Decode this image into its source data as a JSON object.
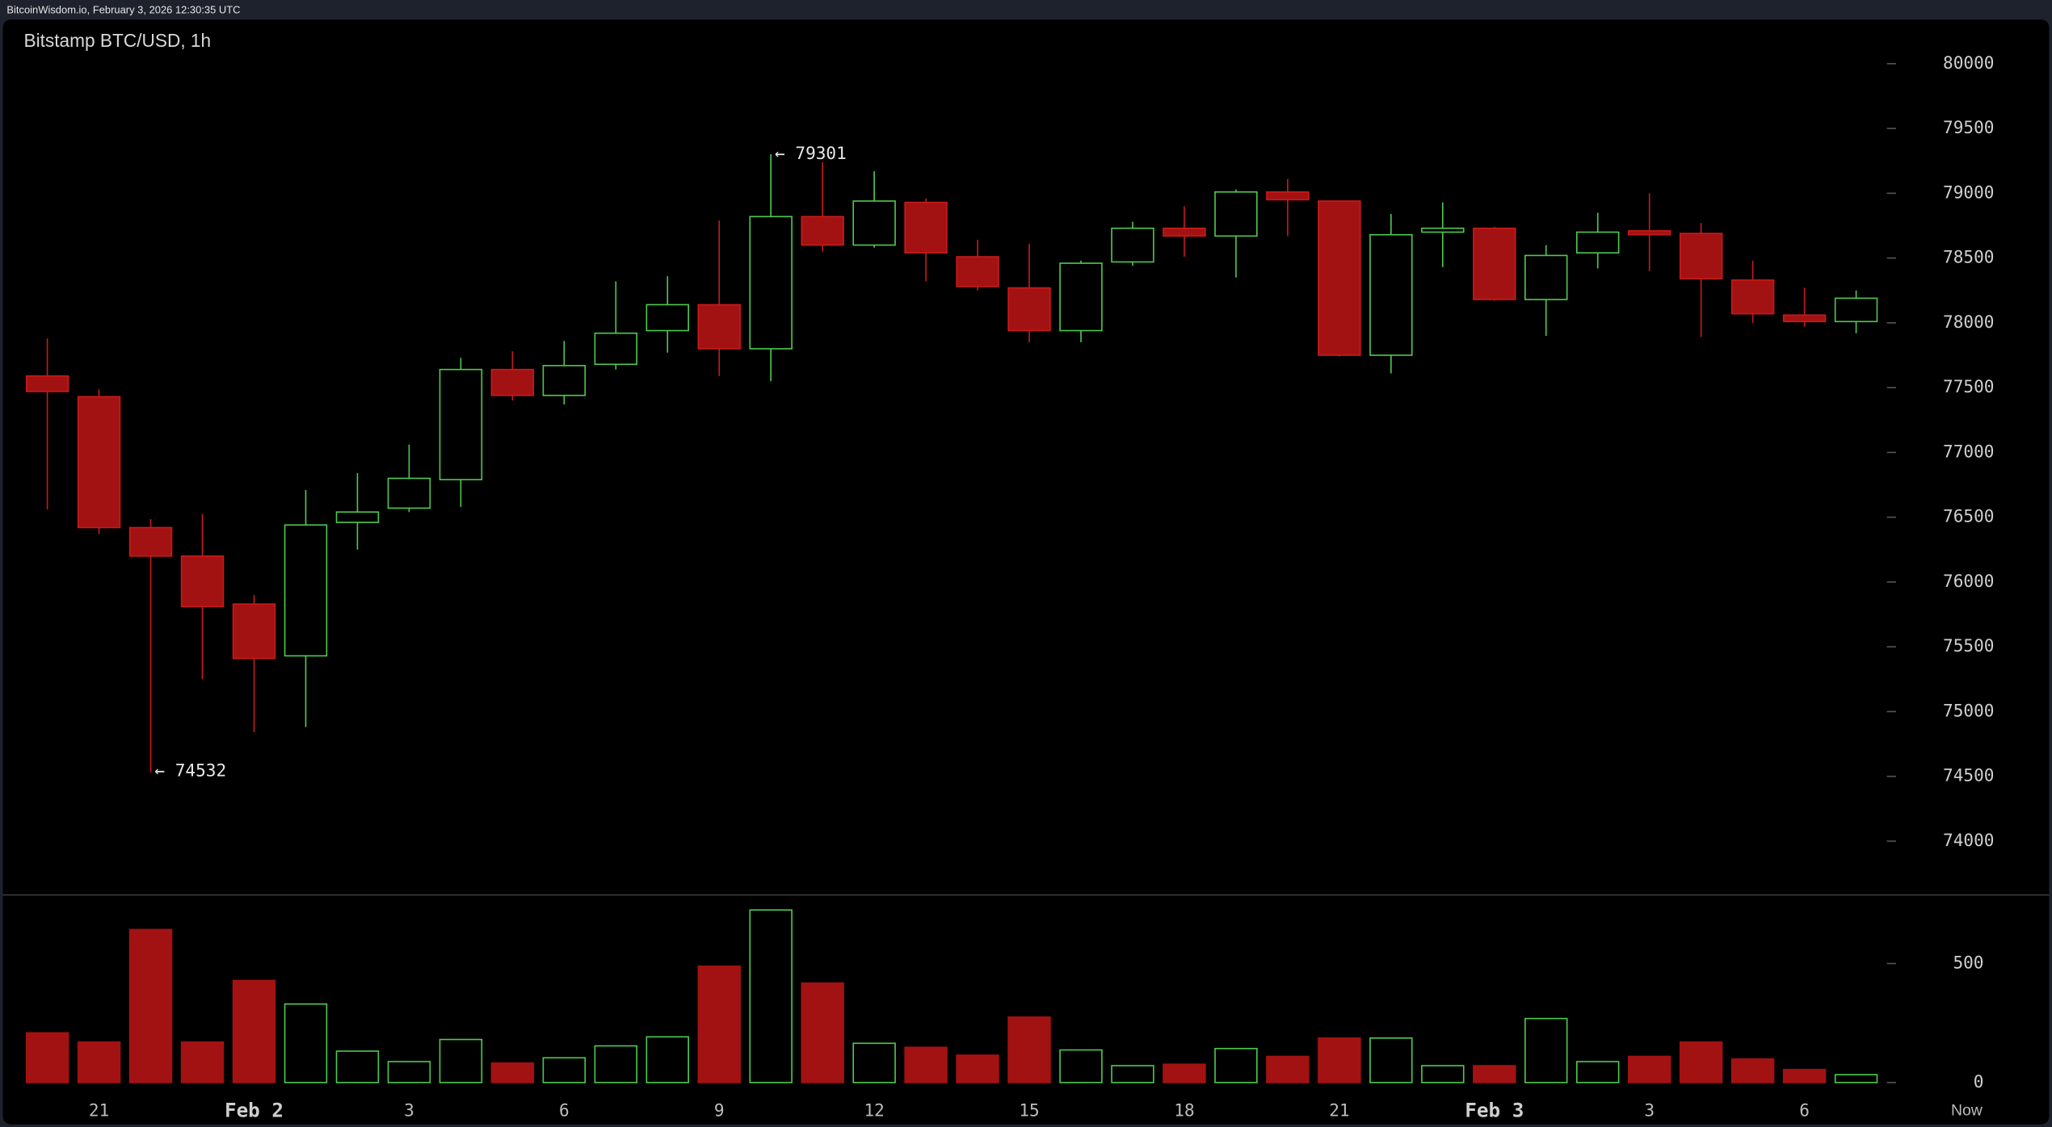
{
  "header": {
    "source": "BitcoinWisdom.io, February 3, 2026 12:30:35 UTC"
  },
  "chart_data": {
    "type": "candlestick",
    "title": "Bitstamp BTC/USD, 1h",
    "categories": [
      null,
      "21",
      null,
      null,
      "Feb 2",
      null,
      null,
      "3",
      null,
      null,
      "6",
      null,
      null,
      "9",
      null,
      null,
      "12",
      null,
      null,
      "15",
      null,
      null,
      "18",
      null,
      null,
      "21",
      null,
      null,
      "Feb 3",
      null,
      null,
      "3",
      null,
      null,
      "6",
      null
    ],
    "now_label": "Now",
    "open": [
      77590,
      77430,
      76420,
      76200,
      75830,
      75430,
      76460,
      76570,
      76790,
      77640,
      77440,
      77680,
      77940,
      78140,
      77800,
      78820,
      78600,
      78930,
      78510,
      78270,
      77940,
      78470,
      78730,
      78670,
      79010,
      78940,
      77750,
      78700,
      78730,
      78180,
      78540,
      78710,
      78690,
      78330,
      78060,
      78010
    ],
    "high": [
      77880,
      77485,
      76485,
      76525,
      75900,
      76710,
      76840,
      77060,
      77730,
      77780,
      77860,
      78320,
      78360,
      78790,
      79301,
      79240,
      79170,
      78960,
      78640,
      78610,
      78480,
      78780,
      78900,
      79030,
      79110,
      78940,
      78840,
      78930,
      78740,
      78600,
      78850,
      79000,
      78770,
      78480,
      78270,
      78250
    ],
    "low": [
      76560,
      76370,
      74532,
      75250,
      74840,
      74880,
      76250,
      76540,
      76580,
      77400,
      77370,
      77640,
      77770,
      77590,
      77550,
      78550,
      78580,
      78320,
      78250,
      77850,
      77850,
      78440,
      78510,
      78350,
      78670,
      77740,
      77610,
      78430,
      78170,
      77900,
      78420,
      78400,
      77890,
      78000,
      77970,
      77920
    ],
    "close": [
      77470,
      76420,
      76200,
      75810,
      75410,
      76440,
      76540,
      76800,
      77640,
      77440,
      77670,
      77920,
      78140,
      77800,
      78820,
      78600,
      78940,
      78540,
      78280,
      77940,
      78460,
      78730,
      78670,
      79010,
      78950,
      77750,
      78680,
      78730,
      78180,
      78520,
      78700,
      78680,
      78340,
      78070,
      78010,
      78190
    ],
    "volume": [
      209,
      170,
      643,
      170,
      429,
      330,
      132,
      88,
      181,
      82,
      104,
      154,
      192,
      489,
      725,
      418,
      165,
      148,
      115,
      275,
      137,
      71,
      77,
      143,
      110,
      187,
      187,
      71,
      71,
      269,
      88,
      110,
      170,
      99,
      55,
      33
    ],
    "ylim": [
      73590,
      80330
    ],
    "yticks": [
      74000,
      74500,
      75000,
      75500,
      76000,
      76500,
      77000,
      77500,
      78000,
      78500,
      79000,
      79500,
      80000
    ],
    "volume_ylim": [
      0,
      780
    ],
    "volume_yticks": [
      0,
      500
    ],
    "annotations": [
      {
        "text": "← 79301"
      },
      {
        "text": "← 74532"
      }
    ],
    "up_color": "#4ec94e",
    "down_color": "#a31212"
  }
}
